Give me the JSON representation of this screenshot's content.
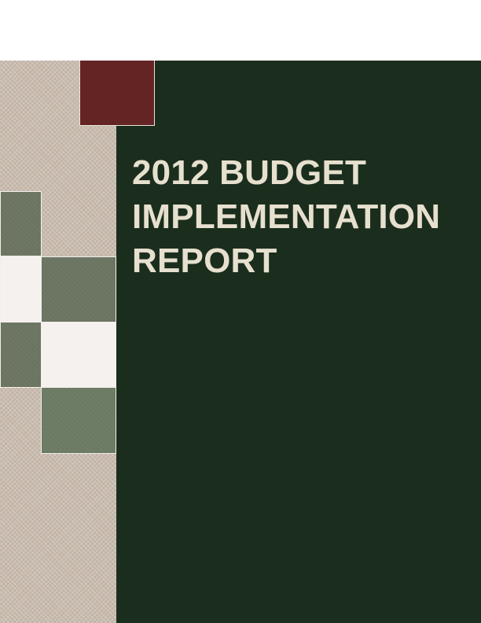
{
  "cover": {
    "title_lines": [
      "2012 BUDGET",
      "IMPLEMENTATION",
      "REPORT"
    ]
  },
  "colors": {
    "background": "#ffffff",
    "left_strip": "#c9bcaf",
    "green_panel": "#1b2e1e",
    "maroon_block": "#632423",
    "tile_dark": "#6b7461",
    "tile_medium": "#6b7a62",
    "tile_light": "#f4f1ef",
    "title_text": "#e7e0cf"
  }
}
